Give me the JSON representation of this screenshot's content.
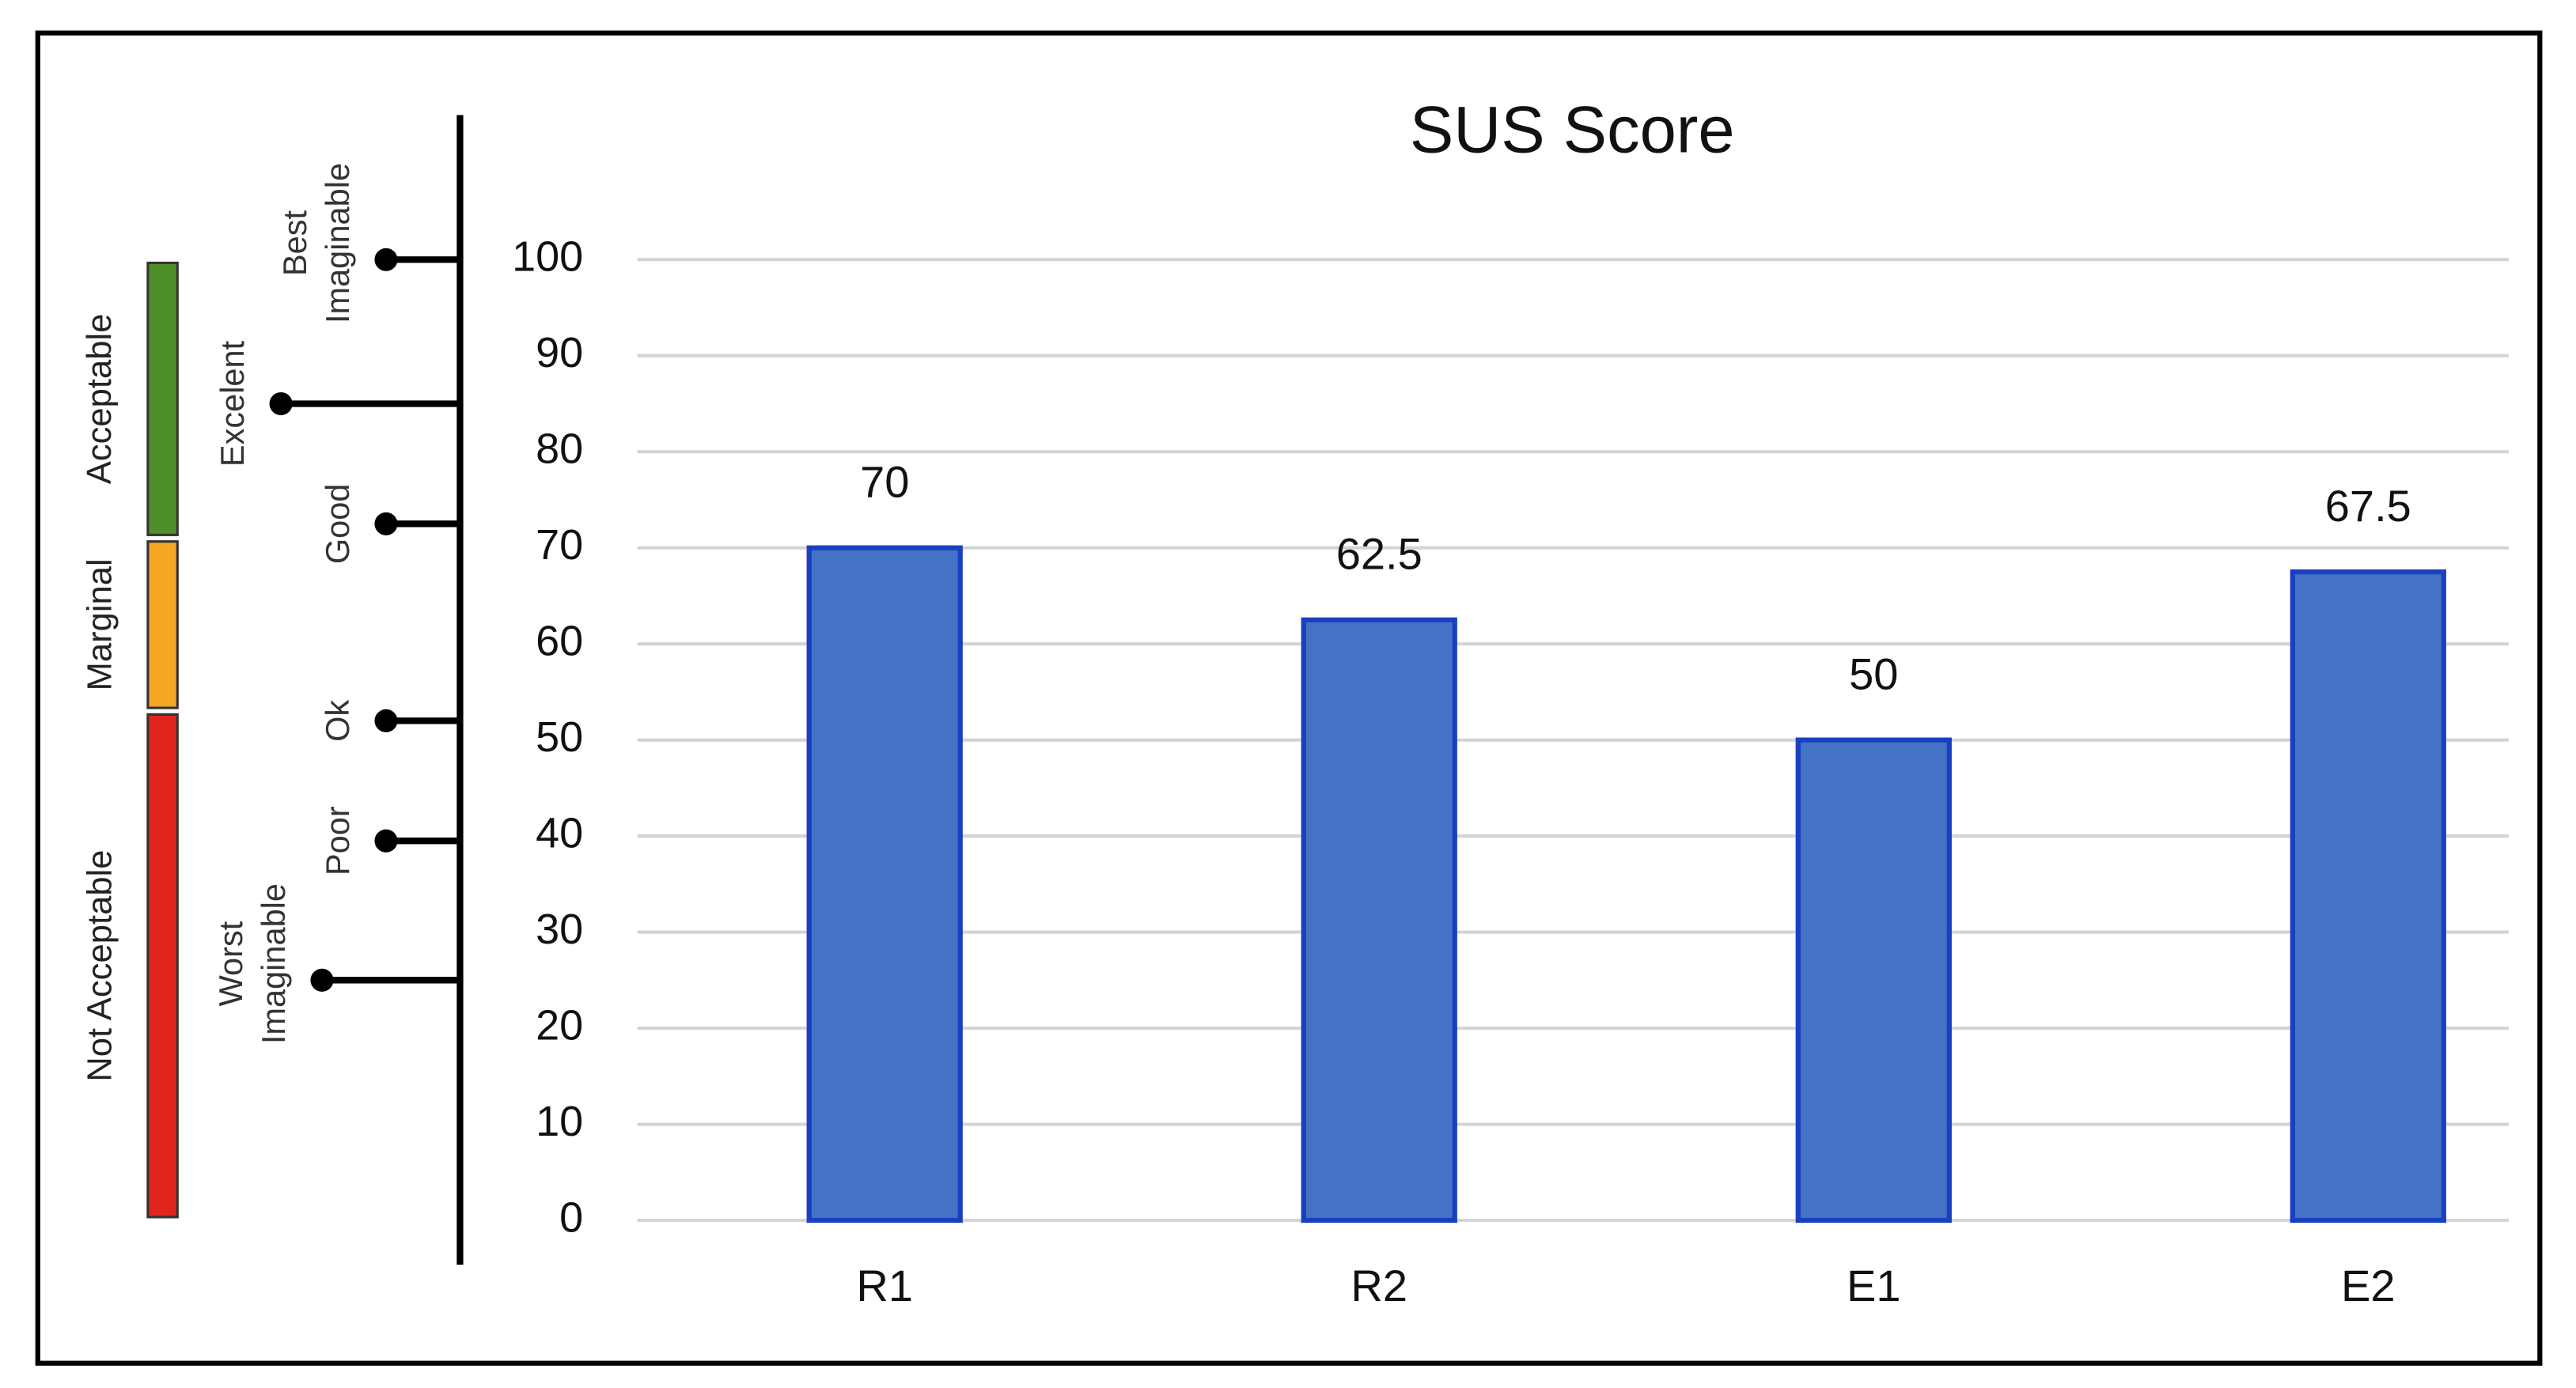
{
  "chart_data": {
    "type": "bar",
    "title": "SUS Score",
    "categories": [
      "R1",
      "R2",
      "E1",
      "E2"
    ],
    "values": [
      70,
      62.5,
      50,
      67.5
    ],
    "color": "#4472c4",
    "ylim": [
      0,
      100
    ],
    "yticks": [
      0,
      10,
      20,
      30,
      40,
      50,
      60,
      70,
      80,
      90,
      100
    ],
    "grid": true,
    "adjective_scale": [
      {
        "label": [
          "Best",
          "Imaginable"
        ],
        "value": 100
      },
      {
        "label": [
          "Excelent"
        ],
        "value": 85
      },
      {
        "label": [
          "Good"
        ],
        "value": 72.5
      },
      {
        "label": [
          "Ok"
        ],
        "value": 52
      },
      {
        "label": [
          "Poor"
        ],
        "value": 39.5
      },
      {
        "label": [
          "Worst",
          "Imaginable"
        ],
        "value": 25
      }
    ],
    "acceptability": [
      {
        "label": "Acceptable",
        "range": [
          71,
          100
        ],
        "color": "#4e8f2a"
      },
      {
        "label": "Marginal",
        "range": [
          53,
          71
        ],
        "color": "#f5a623"
      },
      {
        "label": "Not Acceptable",
        "range": [
          0,
          53
        ],
        "color": "#e0261b"
      }
    ]
  }
}
